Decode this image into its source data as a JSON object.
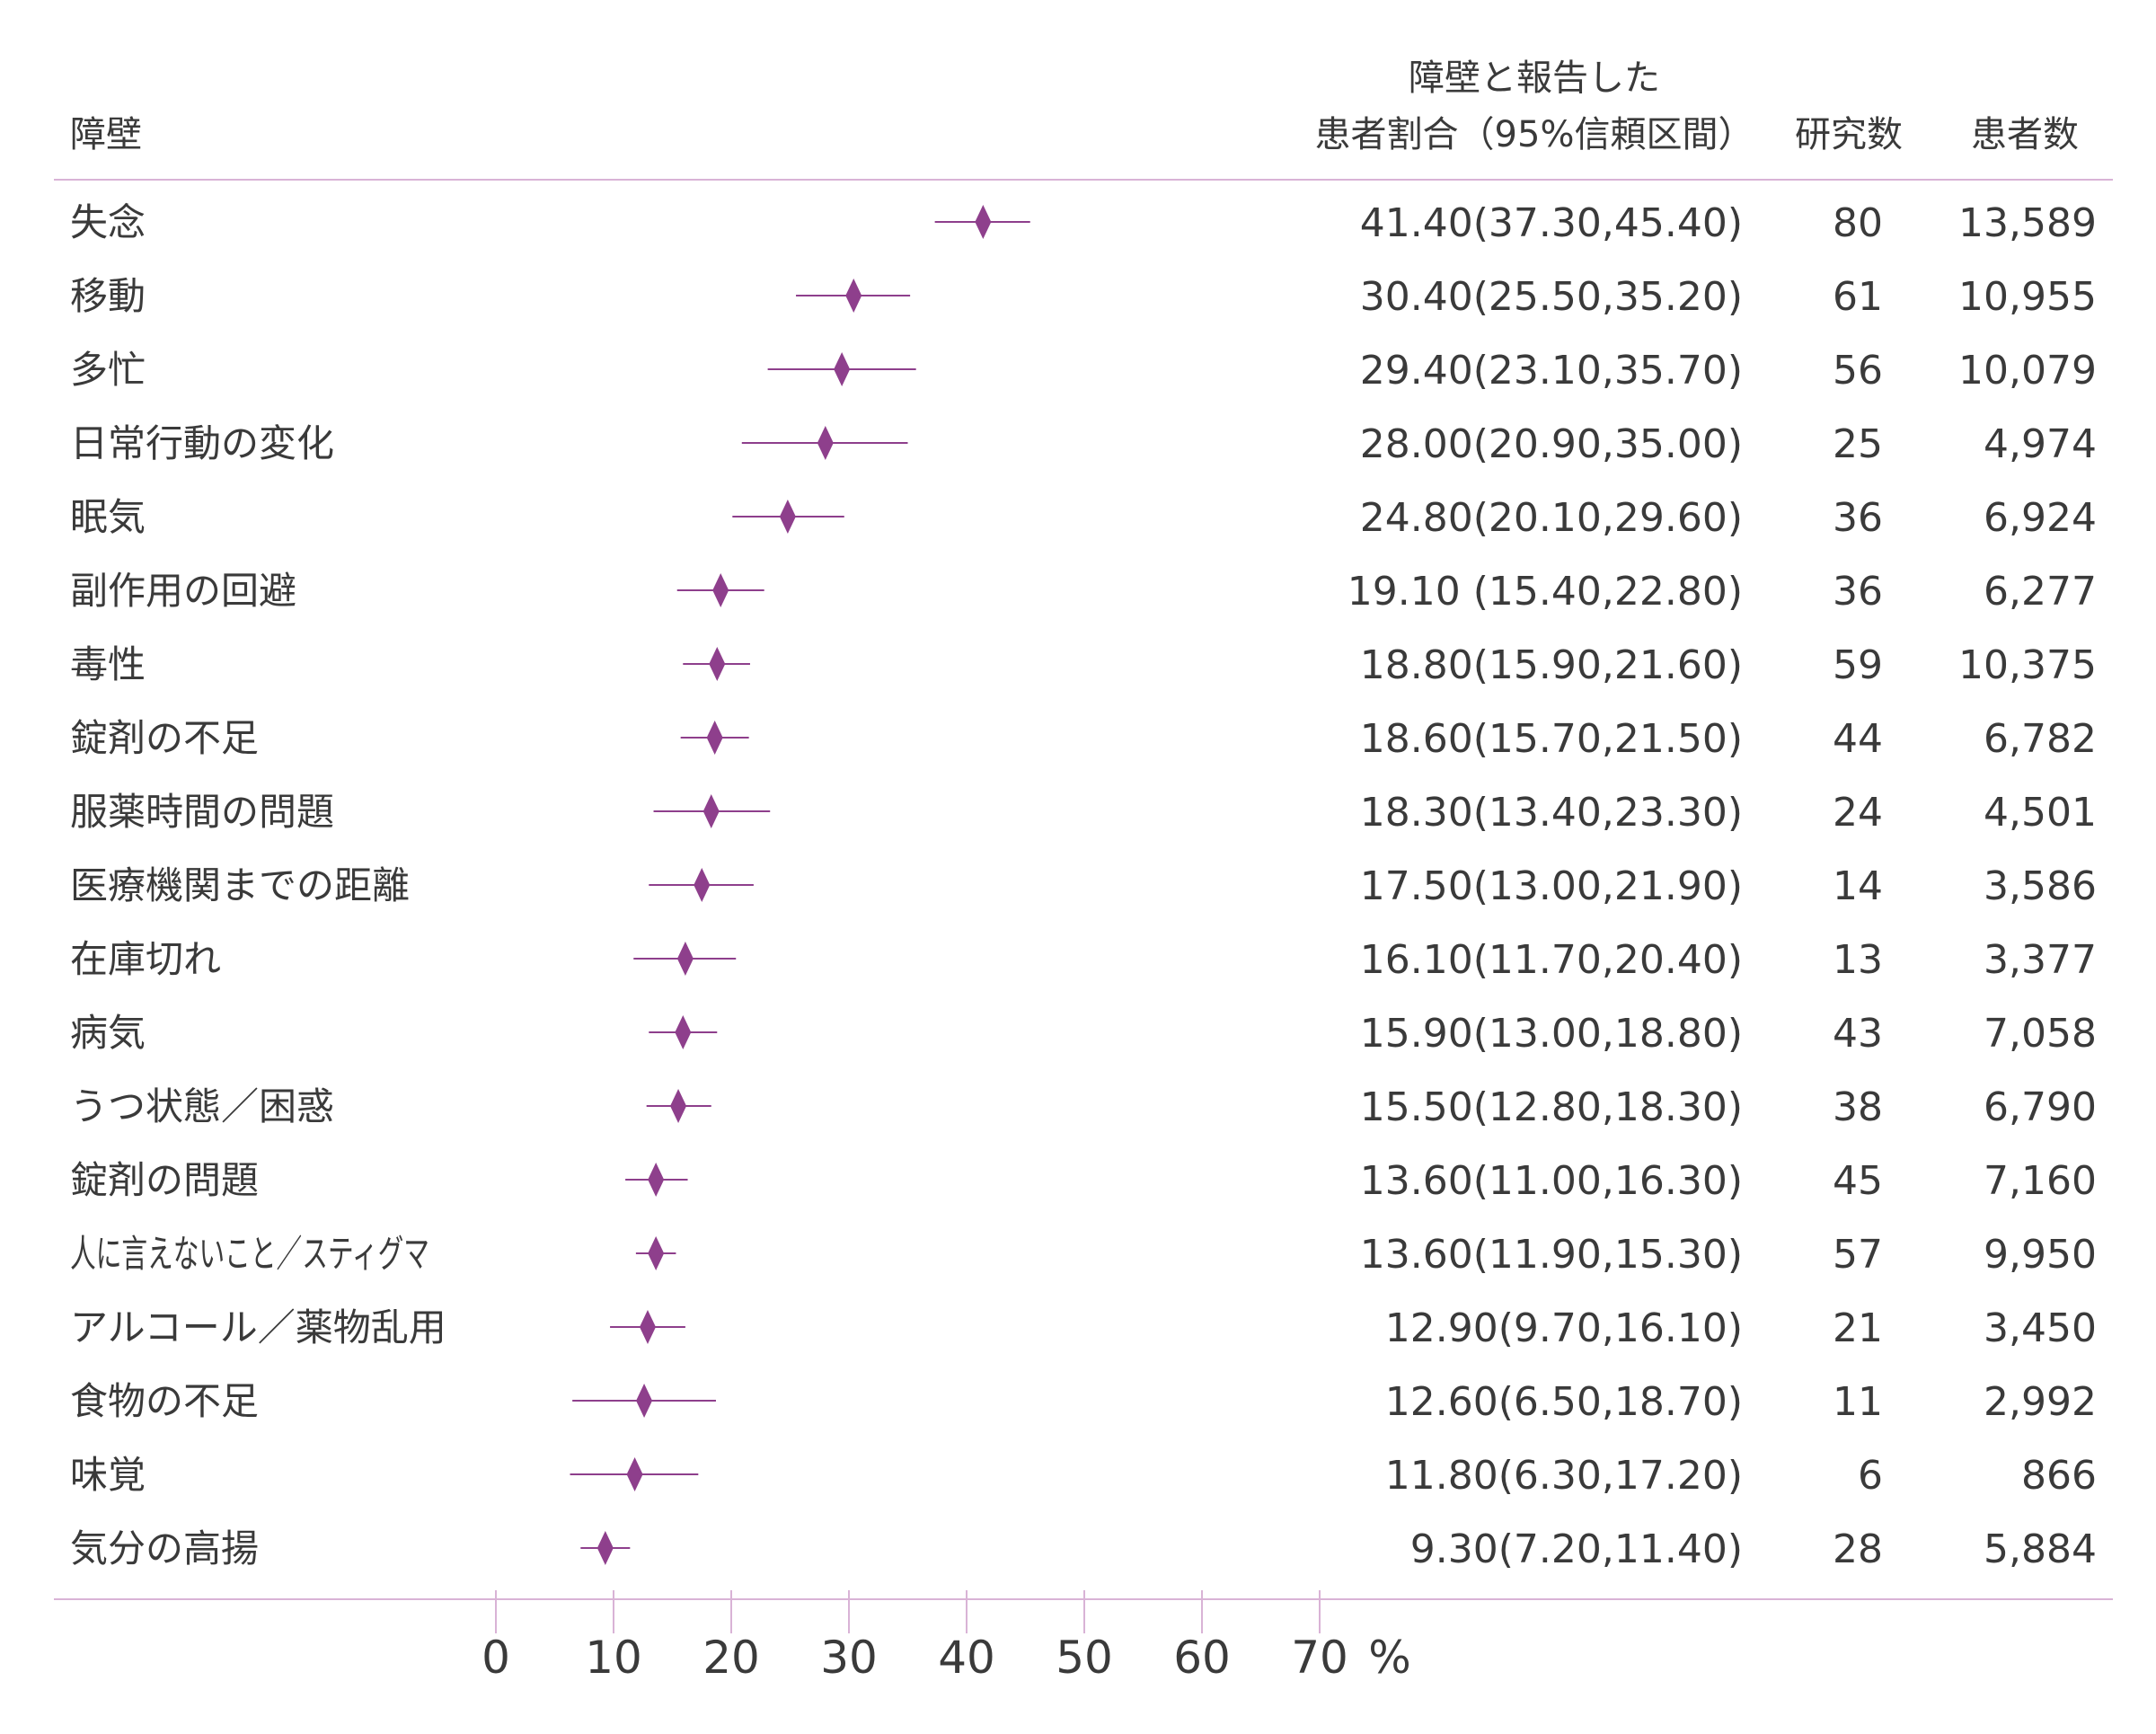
{
  "chart_data": {
    "type": "forest",
    "headers": {
      "barrier": "障壁",
      "proportion_line1": "障壁と報告した",
      "proportion_line2": "患者割合（95%信頼区間）",
      "studies": "研究数",
      "patients": "患者数"
    },
    "x_axis": {
      "ticks": [
        "0",
        "10",
        "20",
        "30",
        "40",
        "50",
        "60",
        "70"
      ],
      "unit": "%",
      "range": [
        0,
        70
      ]
    },
    "colors": {
      "marker": "#8e3f8c",
      "rule": "#d9b3d6",
      "text": "#3a3a3a"
    },
    "rows": [
      {
        "label": "失念",
        "estimate": 41.4,
        "low": 37.3,
        "high": 45.4,
        "ci_text": "41.40(37.30,45.40)",
        "studies": "80",
        "patients": "13,589"
      },
      {
        "label": "移動",
        "estimate": 30.4,
        "low": 25.5,
        "high": 35.2,
        "ci_text": "30.40(25.50,35.20)",
        "studies": "61",
        "patients": "10,955"
      },
      {
        "label": "多忙",
        "estimate": 29.4,
        "low": 23.1,
        "high": 35.7,
        "ci_text": "29.40(23.10,35.70)",
        "studies": "56",
        "patients": "10,079"
      },
      {
        "label": "日常行動の変化",
        "estimate": 28.0,
        "low": 20.9,
        "high": 35.0,
        "ci_text": "28.00(20.90,35.00)",
        "studies": "25",
        "patients": "4,974"
      },
      {
        "label": "眠気",
        "estimate": 24.8,
        "low": 20.1,
        "high": 29.6,
        "ci_text": "24.80(20.10,29.60)",
        "studies": "36",
        "patients": "6,924"
      },
      {
        "label": "副作用の回避",
        "estimate": 19.1,
        "low": 15.4,
        "high": 22.8,
        "ci_text": "19.10 (15.40,22.80)",
        "studies": "36",
        "patients": "6,277"
      },
      {
        "label": "毒性",
        "estimate": 18.8,
        "low": 15.9,
        "high": 21.6,
        "ci_text": "18.80(15.90,21.60)",
        "studies": "59",
        "patients": "10,375"
      },
      {
        "label": "錠剤の不足",
        "estimate": 18.6,
        "low": 15.7,
        "high": 21.5,
        "ci_text": "18.60(15.70,21.50)",
        "studies": "44",
        "patients": "6,782"
      },
      {
        "label": "服薬時間の問題",
        "estimate": 18.3,
        "low": 13.4,
        "high": 23.3,
        "ci_text": "18.30(13.40,23.30)",
        "studies": "24",
        "patients": "4,501"
      },
      {
        "label": "医療機関までの距離",
        "estimate": 17.5,
        "low": 13.0,
        "high": 21.9,
        "ci_text": "17.50(13.00,21.90)",
        "studies": "14",
        "patients": "3,586"
      },
      {
        "label": "在庫切れ",
        "estimate": 16.1,
        "low": 11.7,
        "high": 20.4,
        "ci_text": "16.10(11.70,20.40)",
        "studies": "13",
        "patients": "3,377"
      },
      {
        "label": "病気",
        "estimate": 15.9,
        "low": 13.0,
        "high": 18.8,
        "ci_text": "15.90(13.00,18.80)",
        "studies": "43",
        "patients": "7,058"
      },
      {
        "label": "うつ状態／困惑",
        "estimate": 15.5,
        "low": 12.8,
        "high": 18.3,
        "ci_text": "15.50(12.80,18.30)",
        "studies": "38",
        "patients": "6,790"
      },
      {
        "label": "錠剤の問題",
        "estimate": 13.6,
        "low": 11.0,
        "high": 16.3,
        "ci_text": "13.60(11.00,16.30)",
        "studies": "45",
        "patients": "7,160"
      },
      {
        "label": "人に言えないこと／スティグマ",
        "estimate": 13.6,
        "low": 11.9,
        "high": 15.3,
        "ci_text": "13.60(11.90,15.30)",
        "studies": "57",
        "patients": "9,950"
      },
      {
        "label": "アルコール／薬物乱用",
        "estimate": 12.9,
        "low": 9.7,
        "high": 16.1,
        "ci_text": "12.90(9.70,16.10)",
        "studies": "21",
        "patients": "3,450"
      },
      {
        "label": "食物の不足",
        "estimate": 12.6,
        "low": 6.5,
        "high": 18.7,
        "ci_text": "12.60(6.50,18.70)",
        "studies": "11",
        "patients": "2,992"
      },
      {
        "label": "味覚",
        "estimate": 11.8,
        "low": 6.3,
        "high": 17.2,
        "ci_text": "11.80(6.30,17.20)",
        "studies": "6",
        "patients": "866"
      },
      {
        "label": "気分の高揚",
        "estimate": 9.3,
        "low": 7.2,
        "high": 11.4,
        "ci_text": "9.30(7.20,11.40)",
        "studies": "28",
        "patients": "5,884"
      }
    ]
  }
}
